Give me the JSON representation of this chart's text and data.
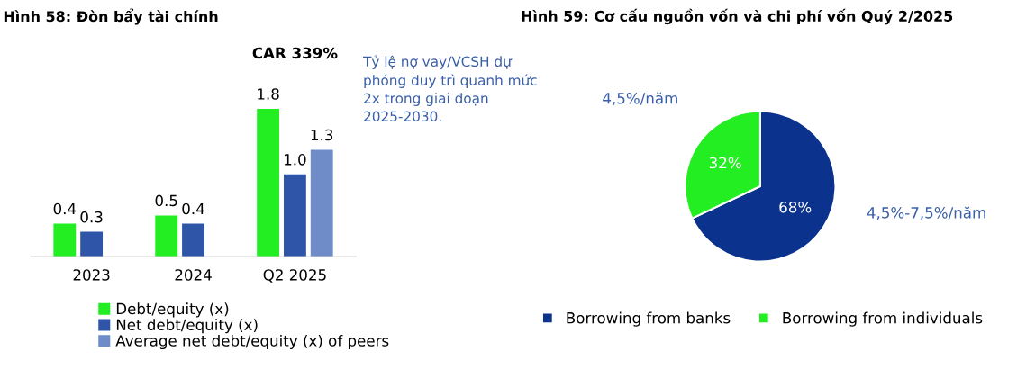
{
  "chart_data": [
    {
      "type": "bar",
      "title": "Hình 58: Đòn bẩy tài chính",
      "categories": [
        "2023",
        "2024",
        "Q2 2025"
      ],
      "series": [
        {
          "name": "Debt/equity (x)",
          "color": "#22ee22",
          "values": [
            0.4,
            0.5,
            1.8
          ],
          "value_labels": [
            "0.4",
            "0.5",
            "1.8"
          ]
        },
        {
          "name": "Net debt/equity (x)",
          "color": "#2f55a8",
          "values": [
            0.3,
            0.4,
            1.0
          ],
          "value_labels": [
            "0.3",
            "0.4",
            "1.0"
          ]
        },
        {
          "name": "Average net debt/equity (x) of peers",
          "color": "#6f8cc8",
          "values": [
            null,
            null,
            1.3
          ],
          "value_labels": [
            null,
            null,
            "1.3"
          ]
        }
      ],
      "legend": "bottom",
      "annotations": [
        "CAR 339%",
        "Tỷ lệ nợ vay/VCSH dự phóng duy trì quanh mức 2x trong giai đoạn 2025-2030."
      ]
    },
    {
      "type": "pie",
      "title": "Hình 59: Cơ cấu nguồn vốn và chi phí vốn Quý 2/2025",
      "categories": [
        "Borrowing from banks",
        "Borrowing from individuals"
      ],
      "values": [
        68,
        32
      ],
      "colors": [
        "#0b328c",
        "#22ee22"
      ],
      "value_labels": [
        "68%",
        "32%"
      ],
      "legend": "bottom",
      "annotations": [
        "4,5%-7,5%/năm",
        "4,5%/năm"
      ]
    }
  ]
}
